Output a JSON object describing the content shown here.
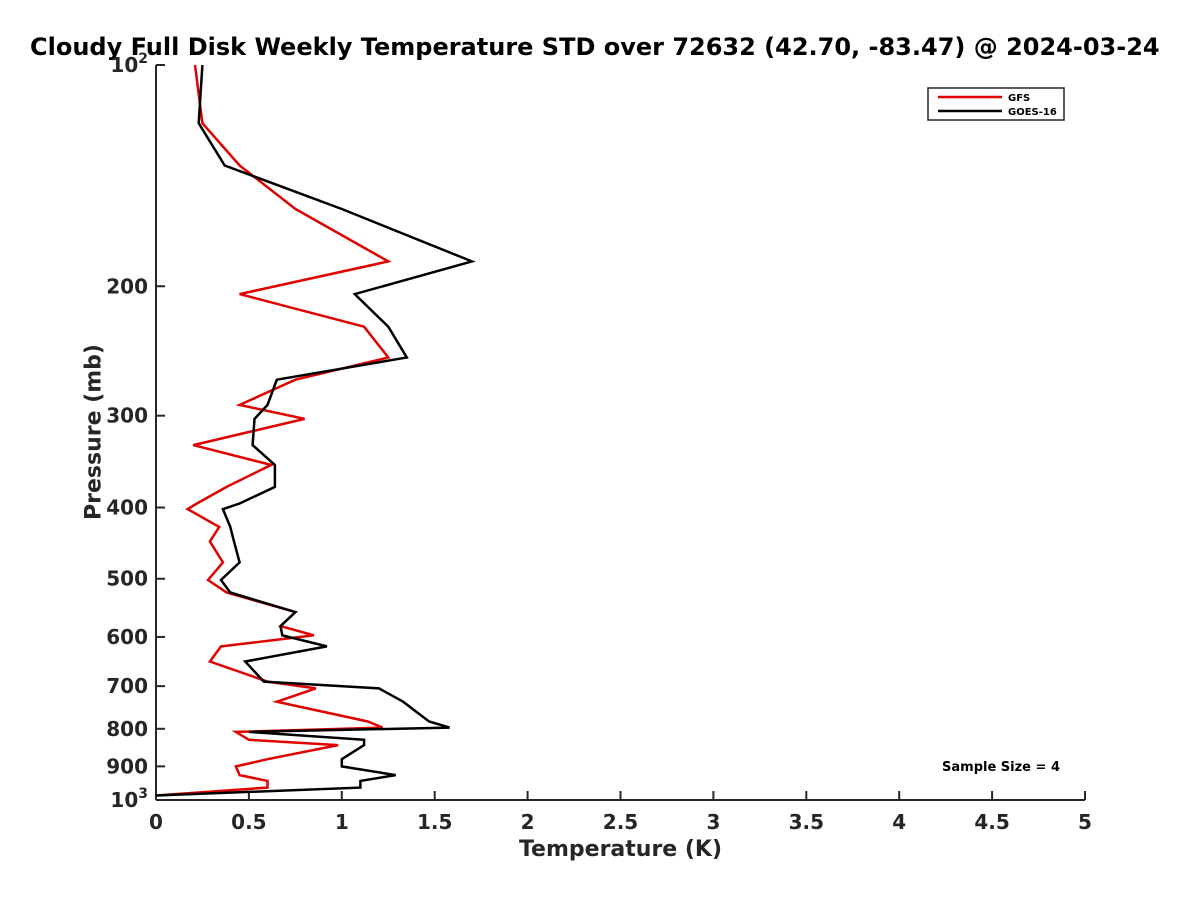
{
  "chart_data": {
    "type": "line",
    "title": "Cloudy Full Disk Weekly Temperature STD over 72632 (42.70, -83.47) @ 2024-03-24",
    "xlabel": "Temperature (K)",
    "ylabel": "Pressure (mb)",
    "xlim": [
      0,
      5
    ],
    "ylim": [
      100,
      1000
    ],
    "y_scale": "log",
    "y_reversed": true,
    "grid": false,
    "legend_position": "top-right",
    "x_ticks": [
      0,
      0.5,
      1,
      1.5,
      2,
      2.5,
      3,
      3.5,
      4,
      4.5,
      5
    ],
    "x_tick_labels": [
      "0",
      "0.5",
      "1",
      "1.5",
      "2",
      "2.5",
      "3",
      "3.5",
      "4",
      "4.5",
      "5"
    ],
    "y_ticks": [
      100,
      200,
      300,
      400,
      500,
      600,
      700,
      800,
      900,
      1000
    ],
    "y_tick_labels": [
      "10^2",
      "200",
      "300",
      "400",
      "500",
      "600",
      "700",
      "800",
      "900",
      "10^3"
    ],
    "annotation": "Sample Size = 4",
    "series": [
      {
        "name": "GFS",
        "color": "#e00000",
        "points": [
          [
            0.21,
            100
          ],
          [
            0.25,
            120
          ],
          [
            0.45,
            137
          ],
          [
            0.75,
            157
          ],
          [
            1.25,
            185
          ],
          [
            0.45,
            205
          ],
          [
            1.12,
            227
          ],
          [
            1.25,
            250
          ],
          [
            0.75,
            268
          ],
          [
            0.45,
            290
          ],
          [
            0.8,
            303
          ],
          [
            0.2,
            329
          ],
          [
            0.62,
            350
          ],
          [
            0.38,
            375
          ],
          [
            0.22,
            395
          ],
          [
            0.17,
            402
          ],
          [
            0.34,
            425
          ],
          [
            0.29,
            445
          ],
          [
            0.36,
            475
          ],
          [
            0.28,
            502
          ],
          [
            0.38,
            522
          ],
          [
            0.75,
            555
          ],
          [
            0.67,
            580
          ],
          [
            0.85,
            597
          ],
          [
            0.35,
            618
          ],
          [
            0.29,
            648
          ],
          [
            0.6,
            690
          ],
          [
            0.86,
            705
          ],
          [
            0.65,
            735
          ],
          [
            1.14,
            782
          ],
          [
            1.22,
            797
          ],
          [
            0.43,
            808
          ],
          [
            0.5,
            828
          ],
          [
            0.98,
            842
          ],
          [
            0.6,
            880
          ],
          [
            0.43,
            900
          ],
          [
            0.45,
            925
          ],
          [
            0.6,
            942
          ],
          [
            0.6,
            962
          ],
          [
            0,
            986
          ]
        ]
      },
      {
        "name": "GOES-16",
        "color": "#000000",
        "points": [
          [
            0.25,
            100
          ],
          [
            0.23,
            120
          ],
          [
            0.37,
            137
          ],
          [
            1.0,
            157
          ],
          [
            1.7,
            185
          ],
          [
            1.07,
            205
          ],
          [
            1.25,
            227
          ],
          [
            1.35,
            250
          ],
          [
            0.65,
            268
          ],
          [
            0.6,
            290
          ],
          [
            0.53,
            303
          ],
          [
            0.52,
            329
          ],
          [
            0.64,
            350
          ],
          [
            0.64,
            375
          ],
          [
            0.45,
            395
          ],
          [
            0.36,
            402
          ],
          [
            0.4,
            425
          ],
          [
            0.42,
            445
          ],
          [
            0.45,
            475
          ],
          [
            0.35,
            502
          ],
          [
            0.4,
            522
          ],
          [
            0.75,
            555
          ],
          [
            0.67,
            580
          ],
          [
            0.68,
            597
          ],
          [
            0.92,
            618
          ],
          [
            0.48,
            648
          ],
          [
            0.58,
            690
          ],
          [
            1.2,
            705
          ],
          [
            1.33,
            735
          ],
          [
            1.47,
            782
          ],
          [
            1.58,
            797
          ],
          [
            0.5,
            808
          ],
          [
            1.12,
            828
          ],
          [
            1.12,
            842
          ],
          [
            1.0,
            880
          ],
          [
            1.0,
            900
          ],
          [
            1.29,
            925
          ],
          [
            1.1,
            942
          ],
          [
            1.1,
            962
          ],
          [
            0,
            986
          ]
        ]
      }
    ]
  }
}
